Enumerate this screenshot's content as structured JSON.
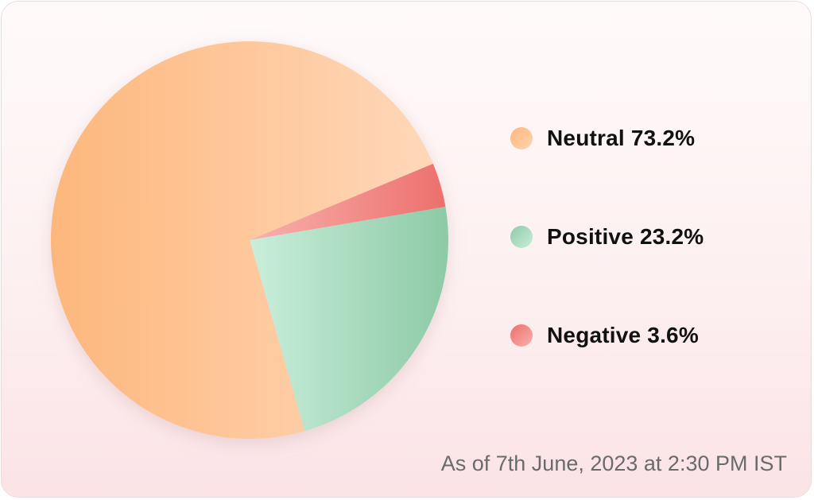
{
  "chart_data": {
    "type": "pie",
    "series": [
      {
        "name": "Neutral",
        "value": 73.2,
        "label": "Neutral 73.2%",
        "color": "#fdb77c",
        "color_light": "#ffd9bc"
      },
      {
        "name": "Positive",
        "value": 23.2,
        "label": "Positive 23.2%",
        "color": "#8dcaa6",
        "color_light": "#c9eedb"
      },
      {
        "name": "Negative",
        "value": 3.6,
        "label": "Negative 3.6%",
        "color": "#ec6f6c",
        "color_light": "#f9b1ad"
      }
    ],
    "legend_position": "right"
  },
  "footnote": "As of 7th June, 2023 at 2:30 PM IST"
}
